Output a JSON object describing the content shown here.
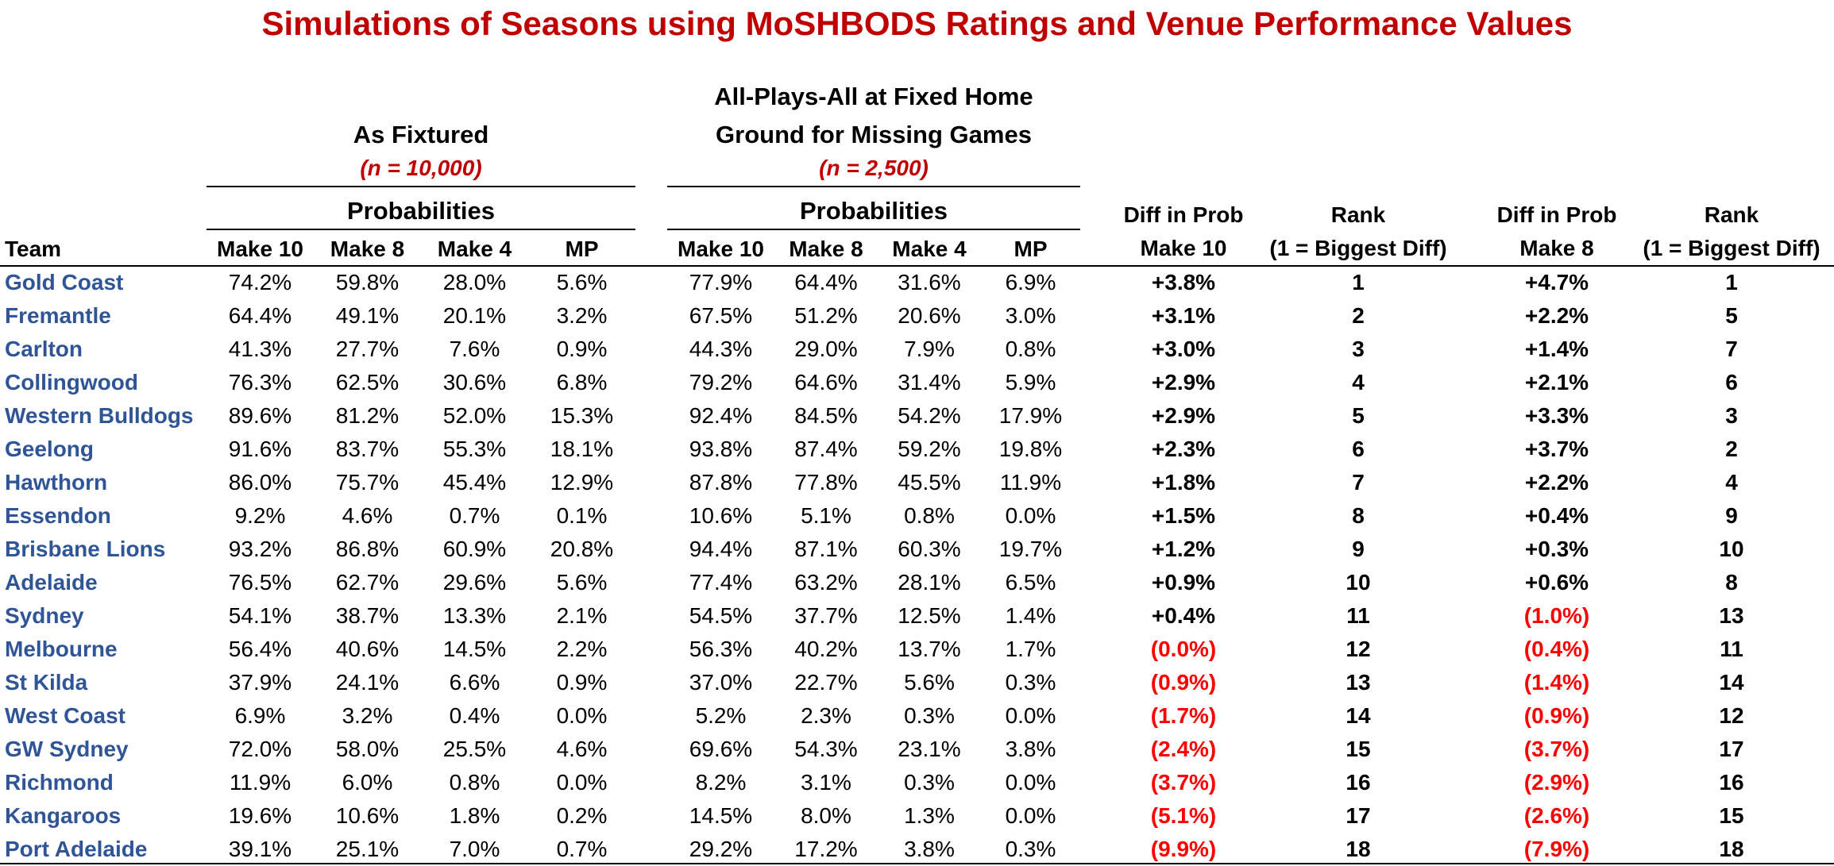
{
  "title": "Simulations of Seasons using MoSHBODS Ratings and Venue Performance Values",
  "groups": {
    "fixtured": {
      "title": "As Fixtured",
      "n": "(n = 10,000)"
    },
    "allplays": {
      "title_line1": "All-Plays-All at Fixed Home",
      "title_line2": "Ground for Missing Games",
      "n": "(n = 2,500)"
    }
  },
  "probabilities_label": "Probabilities",
  "columns": {
    "team": "Team",
    "make10": "Make 10",
    "make8": "Make 8",
    "make4": "Make 4",
    "mp": "MP",
    "diff_line1": "Diff in Prob",
    "diff10_line2": "Make 10",
    "diff8_line2": "Make 8",
    "rank_line1": "Rank",
    "rank_line2": "(1 = Biggest Diff)"
  },
  "colors": {
    "title": "#c00000",
    "team": "#2f5597",
    "negative": "#ff0000"
  },
  "rows": [
    {
      "team": "Gold Coast",
      "f10": "74.2%",
      "f8": "59.8%",
      "f4": "28.0%",
      "fmp": "5.6%",
      "a10": "77.9%",
      "a8": "64.4%",
      "a4": "31.6%",
      "amp": "6.9%",
      "d10": "+3.8%",
      "r10": "1",
      "d8": "+4.7%",
      "r8": "1"
    },
    {
      "team": "Fremantle",
      "f10": "64.4%",
      "f8": "49.1%",
      "f4": "20.1%",
      "fmp": "3.2%",
      "a10": "67.5%",
      "a8": "51.2%",
      "a4": "20.6%",
      "amp": "3.0%",
      "d10": "+3.1%",
      "r10": "2",
      "d8": "+2.2%",
      "r8": "5"
    },
    {
      "team": "Carlton",
      "f10": "41.3%",
      "f8": "27.7%",
      "f4": "7.6%",
      "fmp": "0.9%",
      "a10": "44.3%",
      "a8": "29.0%",
      "a4": "7.9%",
      "amp": "0.8%",
      "d10": "+3.0%",
      "r10": "3",
      "d8": "+1.4%",
      "r8": "7"
    },
    {
      "team": "Collingwood",
      "f10": "76.3%",
      "f8": "62.5%",
      "f4": "30.6%",
      "fmp": "6.8%",
      "a10": "79.2%",
      "a8": "64.6%",
      "a4": "31.4%",
      "amp": "5.9%",
      "d10": "+2.9%",
      "r10": "4",
      "d8": "+2.1%",
      "r8": "6"
    },
    {
      "team": "Western Bulldogs",
      "f10": "89.6%",
      "f8": "81.2%",
      "f4": "52.0%",
      "fmp": "15.3%",
      "a10": "92.4%",
      "a8": "84.5%",
      "a4": "54.2%",
      "amp": "17.9%",
      "d10": "+2.9%",
      "r10": "5",
      "d8": "+3.3%",
      "r8": "3"
    },
    {
      "team": "Geelong",
      "f10": "91.6%",
      "f8": "83.7%",
      "f4": "55.3%",
      "fmp": "18.1%",
      "a10": "93.8%",
      "a8": "87.4%",
      "a4": "59.2%",
      "amp": "19.8%",
      "d10": "+2.3%",
      "r10": "6",
      "d8": "+3.7%",
      "r8": "2"
    },
    {
      "team": "Hawthorn",
      "f10": "86.0%",
      "f8": "75.7%",
      "f4": "45.4%",
      "fmp": "12.9%",
      "a10": "87.8%",
      "a8": "77.8%",
      "a4": "45.5%",
      "amp": "11.9%",
      "d10": "+1.8%",
      "r10": "7",
      "d8": "+2.2%",
      "r8": "4"
    },
    {
      "team": "Essendon",
      "f10": "9.2%",
      "f8": "4.6%",
      "f4": "0.7%",
      "fmp": "0.1%",
      "a10": "10.6%",
      "a8": "5.1%",
      "a4": "0.8%",
      "amp": "0.0%",
      "d10": "+1.5%",
      "r10": "8",
      "d8": "+0.4%",
      "r8": "9"
    },
    {
      "team": "Brisbane Lions",
      "f10": "93.2%",
      "f8": "86.8%",
      "f4": "60.9%",
      "fmp": "20.8%",
      "a10": "94.4%",
      "a8": "87.1%",
      "a4": "60.3%",
      "amp": "19.7%",
      "d10": "+1.2%",
      "r10": "9",
      "d8": "+0.3%",
      "r8": "10"
    },
    {
      "team": "Adelaide",
      "f10": "76.5%",
      "f8": "62.7%",
      "f4": "29.6%",
      "fmp": "5.6%",
      "a10": "77.4%",
      "a8": "63.2%",
      "a4": "28.1%",
      "amp": "6.5%",
      "d10": "+0.9%",
      "r10": "10",
      "d8": "+0.6%",
      "r8": "8"
    },
    {
      "team": "Sydney",
      "f10": "54.1%",
      "f8": "38.7%",
      "f4": "13.3%",
      "fmp": "2.1%",
      "a10": "54.5%",
      "a8": "37.7%",
      "a4": "12.5%",
      "amp": "1.4%",
      "d10": "+0.4%",
      "r10": "11",
      "d8": "(1.0%)",
      "r8": "13"
    },
    {
      "team": "Melbourne",
      "f10": "56.4%",
      "f8": "40.6%",
      "f4": "14.5%",
      "fmp": "2.2%",
      "a10": "56.3%",
      "a8": "40.2%",
      "a4": "13.7%",
      "amp": "1.7%",
      "d10": "(0.0%)",
      "r10": "12",
      "d8": "(0.4%)",
      "r8": "11"
    },
    {
      "team": "St Kilda",
      "f10": "37.9%",
      "f8": "24.1%",
      "f4": "6.6%",
      "fmp": "0.9%",
      "a10": "37.0%",
      "a8": "22.7%",
      "a4": "5.6%",
      "amp": "0.3%",
      "d10": "(0.9%)",
      "r10": "13",
      "d8": "(1.4%)",
      "r8": "14"
    },
    {
      "team": "West Coast",
      "f10": "6.9%",
      "f8": "3.2%",
      "f4": "0.4%",
      "fmp": "0.0%",
      "a10": "5.2%",
      "a8": "2.3%",
      "a4": "0.3%",
      "amp": "0.0%",
      "d10": "(1.7%)",
      "r10": "14",
      "d8": "(0.9%)",
      "r8": "12"
    },
    {
      "team": "GW Sydney",
      "f10": "72.0%",
      "f8": "58.0%",
      "f4": "25.5%",
      "fmp": "4.6%",
      "a10": "69.6%",
      "a8": "54.3%",
      "a4": "23.1%",
      "amp": "3.8%",
      "d10": "(2.4%)",
      "r10": "15",
      "d8": "(3.7%)",
      "r8": "17"
    },
    {
      "team": "Richmond",
      "f10": "11.9%",
      "f8": "6.0%",
      "f4": "0.8%",
      "fmp": "0.0%",
      "a10": "8.2%",
      "a8": "3.1%",
      "a4": "0.3%",
      "amp": "0.0%",
      "d10": "(3.7%)",
      "r10": "16",
      "d8": "(2.9%)",
      "r8": "16"
    },
    {
      "team": "Kangaroos",
      "f10": "19.6%",
      "f8": "10.6%",
      "f4": "1.8%",
      "fmp": "0.2%",
      "a10": "14.5%",
      "a8": "8.0%",
      "a4": "1.3%",
      "amp": "0.0%",
      "d10": "(5.1%)",
      "r10": "17",
      "d8": "(2.6%)",
      "r8": "15"
    },
    {
      "team": "Port Adelaide",
      "f10": "39.1%",
      "f8": "25.1%",
      "f4": "7.0%",
      "fmp": "0.7%",
      "a10": "29.2%",
      "a8": "17.2%",
      "a4": "3.8%",
      "amp": "0.3%",
      "d10": "(9.9%)",
      "r10": "18",
      "d8": "(7.9%)",
      "r8": "18"
    }
  ]
}
